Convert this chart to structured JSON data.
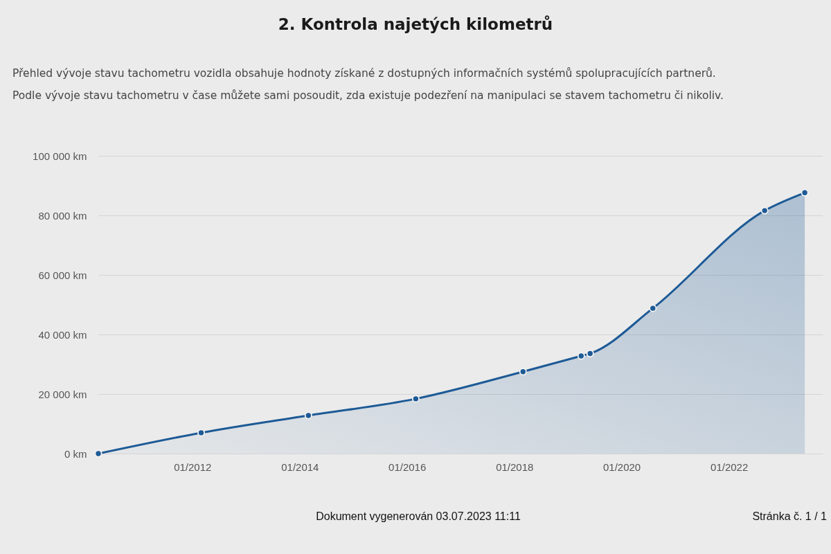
{
  "chart_data": {
    "type": "area",
    "title": "2. Kontrola najetých kilometrů",
    "subtitle": "Přehled vývoje stavu tachometru vozidla obsahuje hodnoty získané z dostupných informačních systémů spolupracujících partnerů.\nPodle vývoje stavu tachometru v čase můžete sami posoudit, zda existuje podezření na manipulaci se stavem tachometru či nikoliv.",
    "annotations": [
      "Dokument vygenerován 03.07.2023 11:11",
      "Stránka č. 1 / 1"
    ],
    "x": [
      "2010-04",
      "2012-03",
      "2014-03",
      "2016-03",
      "2018-03",
      "2019-04",
      "2019-06",
      "2020-08",
      "2022-09",
      "2023-06"
    ],
    "series": [
      {
        "color": "#1d5a96",
        "values": [
          0,
          7000,
          12800,
          18400,
          27500,
          32800,
          33600,
          48800,
          81600,
          87600
        ]
      }
    ],
    "xlim": [
      "2010-04",
      "2023-10"
    ],
    "xticks": [
      {
        "value": "2012-01",
        "label": "01/2012"
      },
      {
        "value": "2014-01",
        "label": "01/2014"
      },
      {
        "value": "2016-01",
        "label": "01/2016"
      },
      {
        "value": "2018-01",
        "label": "01/2018"
      },
      {
        "value": "2020-01",
        "label": "01/2020"
      },
      {
        "value": "2022-01",
        "label": "01/2022"
      }
    ],
    "ylim": [
      0,
      100000
    ],
    "yticks": [
      {
        "value": 0,
        "label": "0 km"
      },
      {
        "value": 20000,
        "label": "20 000 km"
      },
      {
        "value": 40000,
        "label": "40 000 km"
      },
      {
        "value": 60000,
        "label": "60 000 km"
      },
      {
        "value": 80000,
        "label": "80 000 km"
      },
      {
        "value": 100000,
        "label": "100 000 km"
      }
    ],
    "grid": "y",
    "marker": "circle"
  }
}
